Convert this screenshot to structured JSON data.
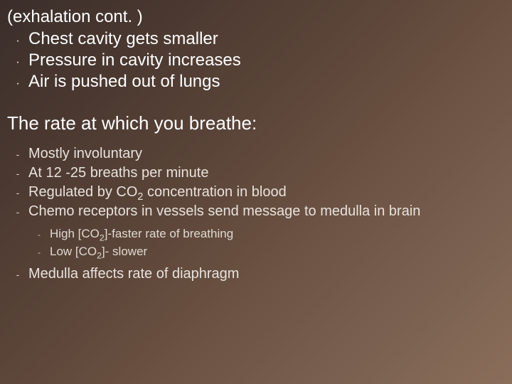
{
  "colors": {
    "text_primary": "#ffffff",
    "text_secondary": "#e8e2dc",
    "text_tertiary": "#e0d8d0",
    "bullet_dim": "#d8d0c8",
    "bg_gradient_start": "#3a2e2a",
    "bg_gradient_end": "#8a6e5a"
  },
  "typography": {
    "heading_fontsize": 24,
    "heading2_fontsize": 26,
    "body_fontsize": 20,
    "sub_fontsize": 17,
    "font_family": "Arial"
  },
  "section1": {
    "heading": "(exhalation cont. )",
    "items": [
      "Chest cavity gets smaller",
      "Pressure in cavity increases",
      "Air is pushed out of lungs"
    ]
  },
  "section2": {
    "heading": "The rate at which you breathe:",
    "items": [
      {
        "text": "Mostly involuntary"
      },
      {
        "text": "At 12 -25 breaths per minute"
      },
      {
        "text_html": "Regulated by CO<sub>2</sub> concentration in blood"
      },
      {
        "text": "Chemo receptors in vessels send message to medulla in brain",
        "sub": [
          {
            "text_html": "High [CO<sub>2</sub>]-faster rate of breathing"
          },
          {
            "text_html": "Low [CO<sub>2</sub>]- slower"
          }
        ]
      },
      {
        "text": "Medulla  affects  rate of diaphragm"
      }
    ]
  }
}
